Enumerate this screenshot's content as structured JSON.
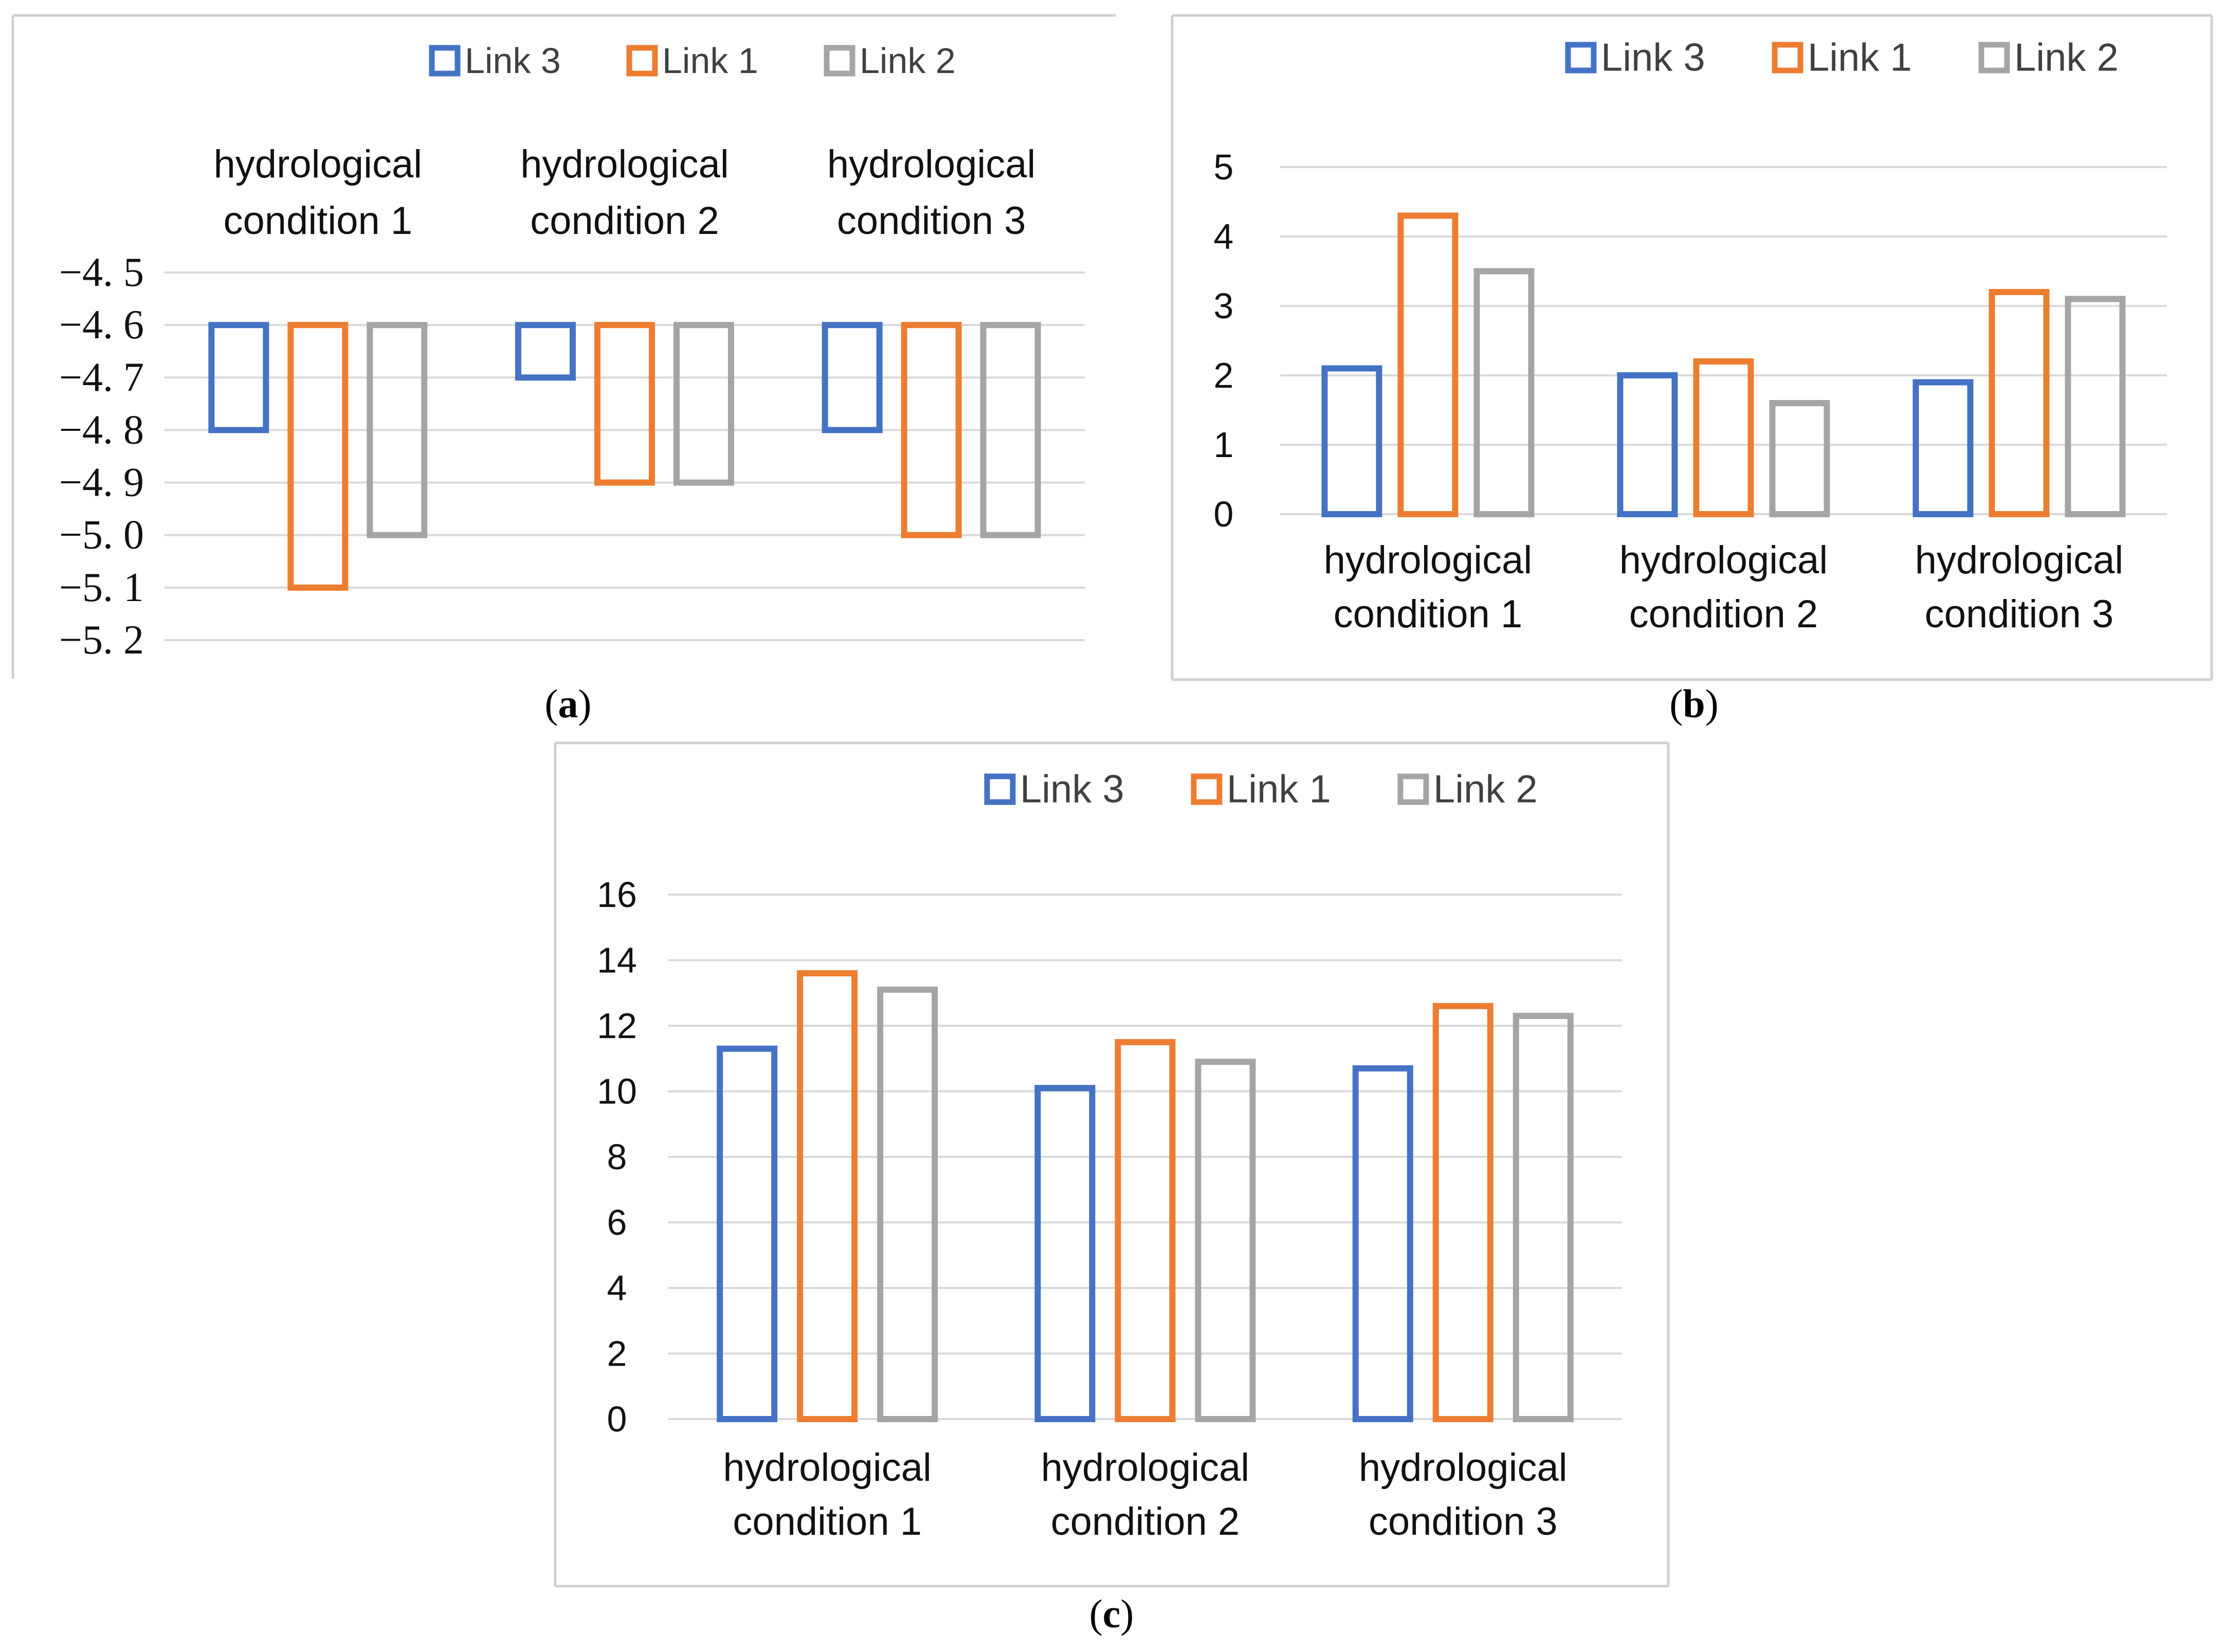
{
  "colors": {
    "link3": "#4472C4",
    "link1": "#ED7D31",
    "link2": "#A5A5A5",
    "grid": "#D9D9D9",
    "frame": "#D0D0D0",
    "text": "#404040"
  },
  "panels": [
    {
      "label": "a",
      "chart_data": {
        "type": "bar",
        "title": "",
        "xlabel": "",
        "ylabel": "",
        "categories": [
          "hydrological condition 1",
          "hydrological condition 2",
          "hydrological condition 3"
        ],
        "series": [
          {
            "name": "Link 3",
            "values": [
              -4.8,
              -4.7,
              -4.8
            ]
          },
          {
            "name": "Link 1",
            "values": [
              -5.1,
              -4.9,
              -5.0
            ]
          },
          {
            "name": "Link 2",
            "values": [
              -5.0,
              -4.9,
              -5.0
            ]
          }
        ],
        "yticks": [
          "−4. 5",
          "−4. 6",
          "−4. 7",
          "−4. 8",
          "−4. 9",
          "−5. 0",
          "−5. 1",
          "−5. 2"
        ],
        "ylim": [
          -5.2,
          -4.5
        ],
        "bar_base": -4.6,
        "category_axis_position": "top",
        "legend": "top",
        "grid": true
      }
    },
    {
      "label": "b",
      "chart_data": {
        "type": "bar",
        "title": "",
        "xlabel": "",
        "ylabel": "",
        "categories": [
          "hydrological condition 1",
          "hydrological condition 2",
          "hydrological condition 3"
        ],
        "series": [
          {
            "name": "Link 3",
            "values": [
              2.1,
              2.0,
              1.9
            ]
          },
          {
            "name": "Link 1",
            "values": [
              4.3,
              2.2,
              3.2
            ]
          },
          {
            "name": "Link 2",
            "values": [
              3.5,
              1.6,
              3.1
            ]
          }
        ],
        "yticks": [
          "0",
          "1",
          "2",
          "3",
          "4",
          "5"
        ],
        "ylim": [
          0,
          5
        ],
        "legend": "top",
        "grid": true
      }
    },
    {
      "label": "c",
      "chart_data": {
        "type": "bar",
        "title": "",
        "xlabel": "",
        "ylabel": "",
        "categories": [
          "hydrological condition 1",
          "hydrological condition 2",
          "hydrological condition 3"
        ],
        "series": [
          {
            "name": "Link 3",
            "values": [
              11.3,
              10.1,
              10.7
            ]
          },
          {
            "name": "Link 1",
            "values": [
              13.6,
              11.5,
              12.6
            ]
          },
          {
            "name": "Link 2",
            "values": [
              13.1,
              10.9,
              12.3
            ]
          }
        ],
        "yticks": [
          "0",
          "2",
          "4",
          "6",
          "8",
          "10",
          "12",
          "14",
          "16"
        ],
        "ylim": [
          0,
          16
        ],
        "legend": "top",
        "grid": true
      }
    }
  ]
}
